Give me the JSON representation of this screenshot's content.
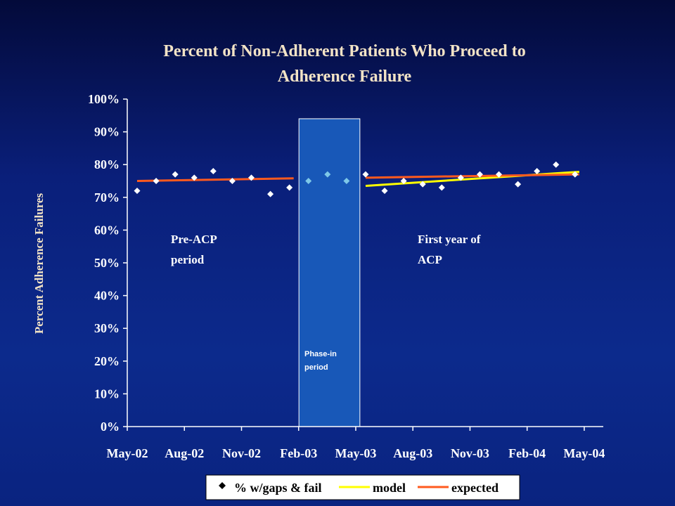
{
  "title_line1": "Percent of Non-Adherent Patients Who Proceed to",
  "title_line2": "Adherence Failure",
  "chart_data": {
    "type": "scatter",
    "ylabel": "Percent Adherence Failures",
    "ylim": [
      0,
      100
    ],
    "y_ticks": [
      "0%",
      "10%",
      "20%",
      "30%",
      "40%",
      "50%",
      "60%",
      "70%",
      "80%",
      "90%",
      "100%"
    ],
    "x_ticks": [
      "May-02",
      "Aug-02",
      "Nov-02",
      "Feb-03",
      "May-03",
      "Aug-03",
      "Nov-03",
      "Feb-04",
      "May-04"
    ],
    "x_start": "2002-05",
    "months": [
      "2002-05",
      "2002-06",
      "2002-07",
      "2002-08",
      "2002-09",
      "2002-10",
      "2002-11",
      "2002-12",
      "2003-01",
      "2003-02",
      "2003-03",
      "2003-04",
      "2003-05",
      "2003-06",
      "2003-07",
      "2003-08",
      "2003-09",
      "2003-10",
      "2003-11",
      "2003-12",
      "2004-01",
      "2004-02",
      "2004-03",
      "2004-04"
    ],
    "values": [
      72,
      75,
      77,
      76,
      78,
      75,
      76,
      71,
      73,
      75,
      77,
      75,
      77,
      72,
      75,
      74,
      73,
      76,
      77,
      77,
      74,
      78,
      80,
      77
    ],
    "phase_in_months": [
      "2003-02",
      "2003-03",
      "2003-04"
    ],
    "expected_pre": {
      "start": "2002-05",
      "end": "2003-01",
      "y0": 75,
      "y1": 75.8
    },
    "expected_post": {
      "start": "2003-05",
      "end": "2004-04",
      "y0": 76,
      "y1": 77
    },
    "model_post": {
      "start": "2003-05",
      "end": "2004-04",
      "y0": 73.5,
      "y1": 77.8
    },
    "phase_region": {
      "start": "2003-01",
      "end": "2003-04"
    },
    "annotations": {
      "pre": [
        "Pre-ACP",
        "period"
      ],
      "post": [
        "First year of",
        "ACP"
      ],
      "phase": [
        "Phase-in",
        "period"
      ]
    },
    "legend": [
      {
        "name": "% w/gaps & fail",
        "marker": "diamond"
      },
      {
        "name": "model",
        "color": "#ffff00"
      },
      {
        "name": "expected",
        "color": "#ff5a1e"
      }
    ],
    "colors": {
      "points": "#ffffff",
      "phase_points": "#7ec8e8",
      "model": "#ffff00",
      "expected": "#ff5a1e",
      "phase_fill": "#1858b8"
    }
  }
}
